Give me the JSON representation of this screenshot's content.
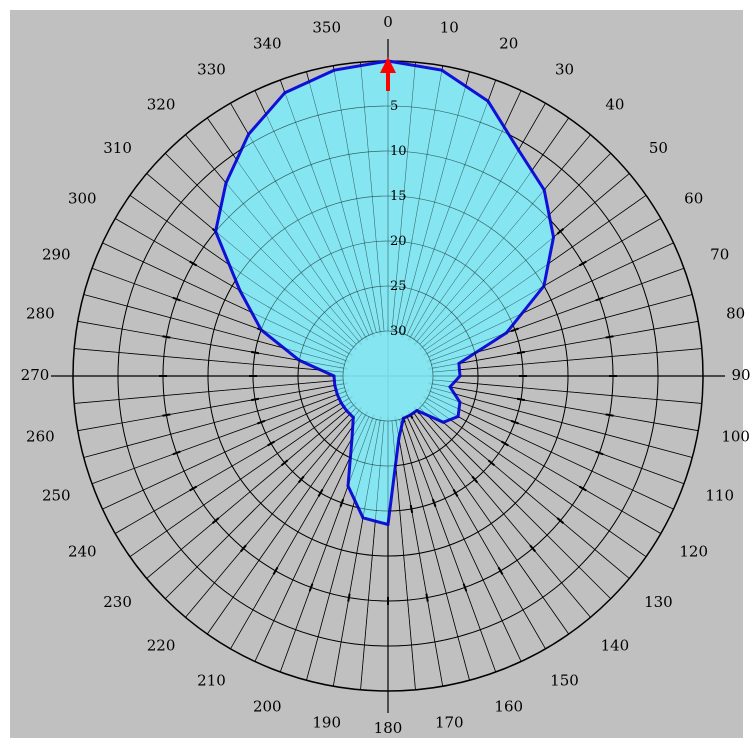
{
  "chart_data": {
    "type": "polar-area",
    "title": "",
    "angle_unit": "degrees",
    "angle_direction": "clockwise",
    "zero_direction": "top",
    "angle_tick_labels": [
      "0",
      "10",
      "20",
      "30",
      "40",
      "50",
      "60",
      "70",
      "80",
      "90",
      "100",
      "110",
      "120",
      "130",
      "140",
      "150",
      "160",
      "170",
      "180",
      "190",
      "200",
      "210",
      "220",
      "230",
      "240",
      "250",
      "260",
      "270",
      "280",
      "290",
      "300",
      "310",
      "320",
      "330",
      "340",
      "350"
    ],
    "radial_scale": {
      "unit": "dB",
      "reversed": true,
      "outer_value": 0,
      "center_value": 35,
      "tick_labels": [
        "5",
        "10",
        "15",
        "20",
        "25",
        "30"
      ]
    },
    "series": [
      {
        "style": "filled",
        "theta": [
          0,
          10,
          20,
          30,
          40,
          50,
          60,
          70,
          80,
          90,
          100,
          110,
          120,
          130,
          140,
          150,
          160,
          170,
          180,
          190,
          200,
          210,
          220,
          230,
          240,
          250,
          260,
          270,
          280,
          290,
          300,
          310,
          320,
          330,
          340,
          350
        ],
        "r_db": [
          0,
          0.5,
          2.5,
          6,
          8,
          11,
          15,
          21,
          27,
          27,
          28,
          26.5,
          26,
          27,
          30,
          30,
          30,
          28,
          18.5,
          19,
          22,
          27,
          29,
          29,
          29,
          29,
          29,
          29,
          25,
          20,
          16,
          10,
          7,
          4,
          1.5,
          0.5
        ]
      }
    ],
    "marker": {
      "shape": "arrow",
      "angle": 0
    },
    "grid": true,
    "colors": {
      "background": "#c0c0c0",
      "fill": "#80e8f4",
      "stroke": "#1010d8",
      "grid": "#000000",
      "marker": "#ff0000"
    }
  }
}
